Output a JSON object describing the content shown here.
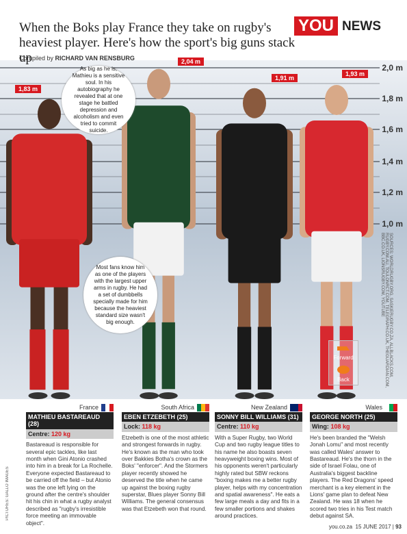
{
  "header": {
    "title": "When the Boks play France they take on rugby's heaviest player. Here's how the sport's big guns stack up",
    "brand": "YOU",
    "section": "NEWS",
    "compiled_label": "Compiled by",
    "compiled_name": "RICHARD VAN RENSBURG"
  },
  "scale": [
    "2,0 m",
    "1,8 m",
    "1,6 m",
    "1,4 m",
    "1,2 m",
    "1,0 m"
  ],
  "bubbles": [
    "As big as he is, Mathieu is a sensitive soul. In his autobiography he revealed that at one stage he battled depression and alcoholism and even tried to commit suicide.",
    "Most fans know him as one of the players with the largest upper arms in rugby. He had a set of dumbbells specially made for him because the heaviest standard size wasn't big enough."
  ],
  "legend": [
    "Forward",
    "Back"
  ],
  "sources": "SOURCES: WORLDRUGBY.ORG, SASKIERUGBY.CO.ZA, ALLBLACKS.COM, RUGBY.COM.AU, TOULONRCT.COM, TELEGRAPH.CO.UK, THEGUARDIAN.COM, BBC.CO.UK, LIONSRUGBY.COM, YOUTUBE",
  "credit": "PICTURES: GALLO IMAGES",
  "players": [
    {
      "height": "1,83 m",
      "country": "France",
      "name": "MATHIEU BASTAREAUD (28)",
      "position": "Centre:",
      "weight": "120 kg",
      "bio": "Bastareaud is responsible for several epic tackles, like last month when Gini Atonio crashed into him in a break for La Rochelle. Everyone expected Bastareaud to be carried off the field – but Atonio was the one left lying on the ground after the centre's shoulder hit his chin in what a rugby analyst described as \"rugby's irresistible force meeting an immovable object\"."
    },
    {
      "height": "2,04 m",
      "country": "South Africa",
      "name": "EBEN ETZEBETH (25)",
      "position": "Lock:",
      "weight": "118 kg",
      "bio": "Etzebeth is one of the most athletic and strongest forwards in rugby. He's known as the man who took over Bakkies Botha's crown as the Boks' \"enforcer\". And the Stormers player recently showed he deserved the title when he came up against the boxing rugby superstar, Blues player Sonny Bill Williams. The general consensus was that Etzebeth won that round."
    },
    {
      "height": "1,91 m",
      "country": "New Zealand",
      "name": "SONNY BILL WILLIAMS (31)",
      "position": "Centre:",
      "weight": "110 kg",
      "bio": "With a Super Rugby, two World Cup and two rugby league titles to his name he also boasts seven heavyweight boxing wins. Most of his opponents weren't particularly highly rated but SBW reckons \"boxing makes me a better rugby player, helps with my concentration and spatial awareness\". He eats a few large meals a day and fits in a few smaller portions and shakes around practices."
    },
    {
      "height": "1,93 m",
      "country": "Wales",
      "name": "GEORGE NORTH (25)",
      "position": "Wing:",
      "weight": "108 kg",
      "bio": "He's been branded the \"Welsh Jonah Lomu\" and most recently was called Wales' answer to Bastareaud. He's the thorn in the side of Israel Folau, one of Australia's biggest backline players. The Red Dragons' speed merchant is a key element in the Lions' game plan to defeat New Zealand. He was 18 when he scored two tries in his Test match debut against SA."
    }
  ],
  "footer": {
    "site": "you.co.za",
    "date": "15 JUNE 2017",
    "page": "93"
  }
}
